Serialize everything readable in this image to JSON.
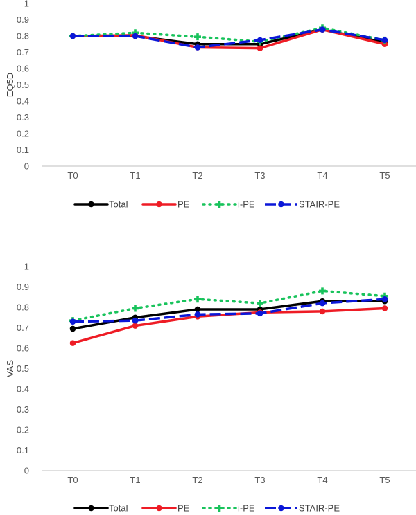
{
  "colors": {
    "Total": "#000000",
    "PE": "#ee1c25",
    "i-PE": "#19c35c",
    "STAIR-PE": "#0b17d8",
    "grid": "#d9d9d9",
    "axis": "#bfbfbf"
  },
  "chart_data": [
    {
      "type": "line",
      "title": "",
      "xlabel": "",
      "ylabel": "EQ5D",
      "categories": [
        "T0",
        "T1",
        "T2",
        "T3",
        "T4",
        "T5"
      ],
      "ylim": [
        0,
        1
      ],
      "yticks": [
        "0",
        "0.1",
        "0.2",
        "0.3",
        "0.4",
        "0.5",
        "0.6",
        "0.7",
        "0.8",
        "0.9",
        "1"
      ],
      "grid": false,
      "legend_position": "bottom",
      "series": [
        {
          "name": "Total",
          "values": [
            0.8,
            0.8,
            0.75,
            0.75,
            0.84,
            0.76
          ],
          "style": "solid"
        },
        {
          "name": "PE",
          "values": [
            0.8,
            0.805,
            0.73,
            0.725,
            0.84,
            0.75
          ],
          "style": "solid"
        },
        {
          "name": "i-PE",
          "values": [
            0.8,
            0.82,
            0.795,
            0.765,
            0.85,
            0.775
          ],
          "style": "dotted"
        },
        {
          "name": "STAIR-PE",
          "values": [
            0.8,
            0.8,
            0.73,
            0.775,
            0.84,
            0.775
          ],
          "style": "dashed"
        }
      ]
    },
    {
      "type": "line",
      "title": "",
      "xlabel": "",
      "ylabel": "VAS",
      "categories": [
        "T0",
        "T1",
        "T2",
        "T3",
        "T4",
        "T5"
      ],
      "ylim": [
        0,
        1
      ],
      "yticks": [
        "0",
        "0.1",
        "0.2",
        "0.3",
        "0.4",
        "0.5",
        "0.6",
        "0.7",
        "0.8",
        "0.9",
        "1"
      ],
      "grid": false,
      "legend_position": "bottom",
      "series": [
        {
          "name": "Total",
          "values": [
            0.695,
            0.75,
            0.79,
            0.79,
            0.83,
            0.83
          ],
          "style": "solid"
        },
        {
          "name": "PE",
          "values": [
            0.625,
            0.71,
            0.755,
            0.775,
            0.78,
            0.795
          ],
          "style": "solid"
        },
        {
          "name": "i-PE",
          "values": [
            0.735,
            0.795,
            0.84,
            0.82,
            0.88,
            0.855
          ],
          "style": "dotted"
        },
        {
          "name": "STAIR-PE",
          "values": [
            0.73,
            0.735,
            0.765,
            0.77,
            0.82,
            0.84
          ],
          "style": "dashed"
        }
      ]
    }
  ]
}
